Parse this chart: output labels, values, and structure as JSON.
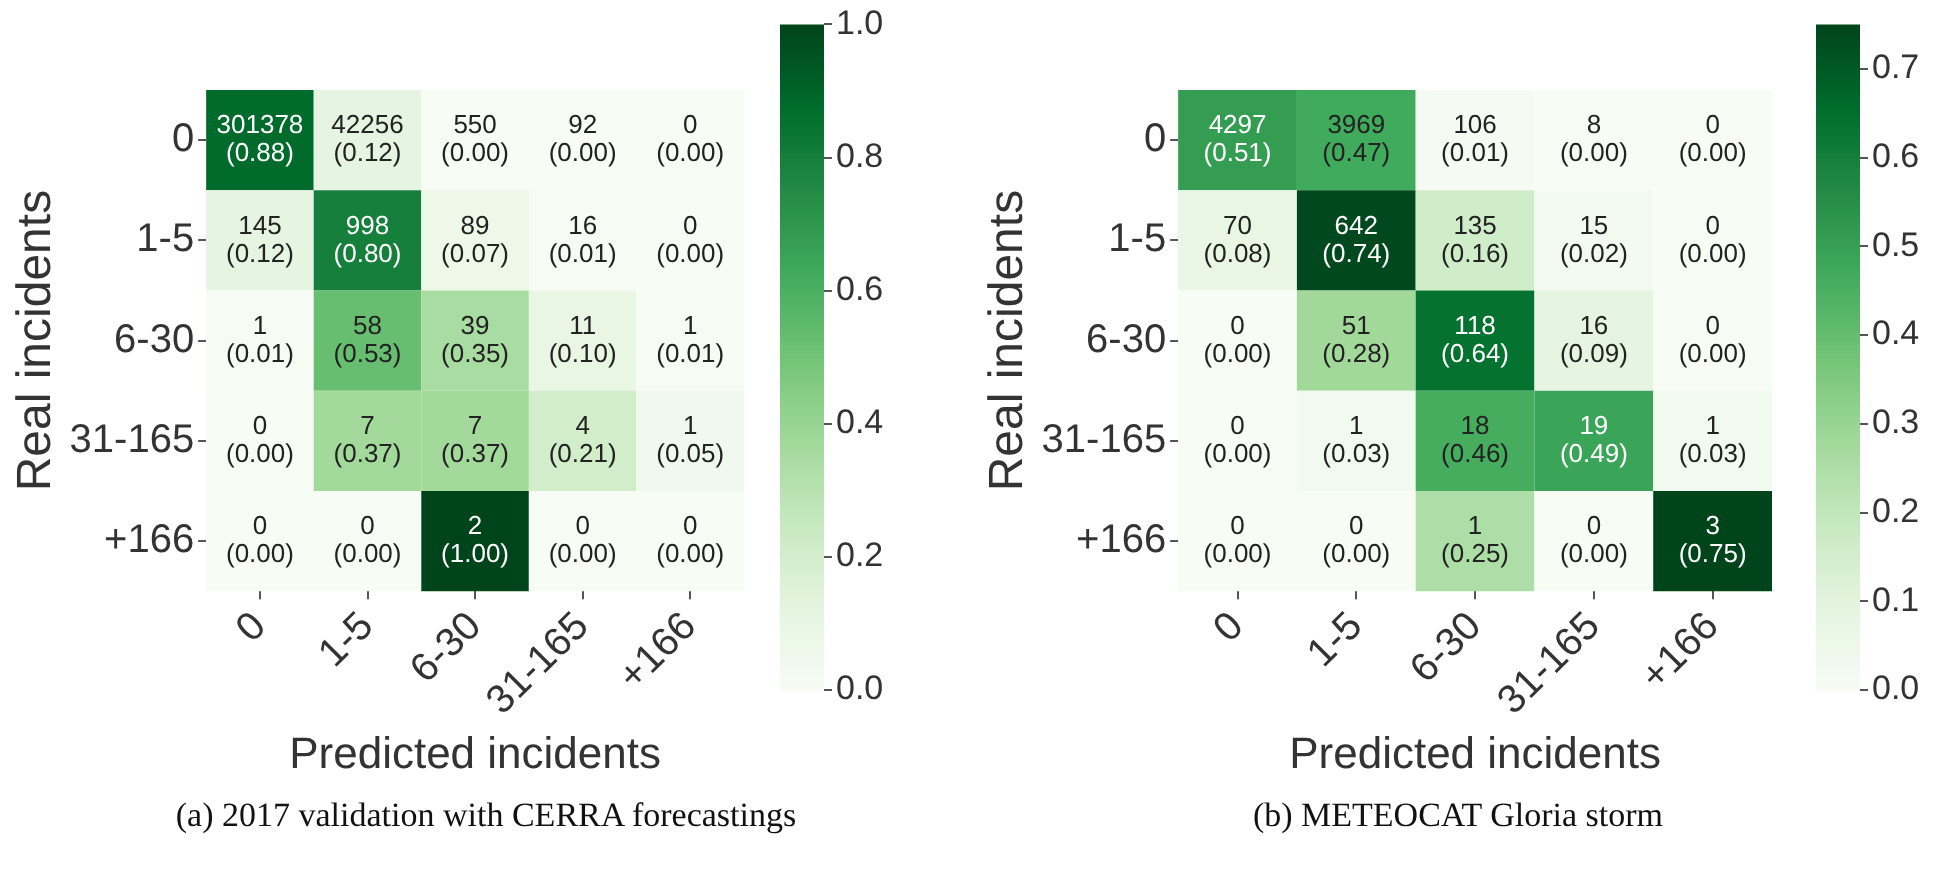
{
  "chart_data": [
    {
      "type": "heatmap",
      "xlabel": "Predicted incidents",
      "ylabel": "Real incidents",
      "categories": [
        "0",
        "1-5",
        "6-30",
        "31-165",
        "+166"
      ],
      "y_categories": [
        "0",
        "1-5",
        "6-30",
        "31-165",
        "+166"
      ],
      "cells": [
        [
          0.88,
          0.12,
          0.0,
          0.0,
          0.0
        ],
        [
          0.12,
          0.8,
          0.07,
          0.01,
          0.0
        ],
        [
          0.01,
          0.53,
          0.35,
          0.1,
          0.01
        ],
        [
          0.0,
          0.37,
          0.37,
          0.21,
          0.05
        ],
        [
          0.0,
          0.0,
          1.0,
          0.0,
          0.0
        ]
      ],
      "cell_labels": [
        [
          "301378\n(0.88)",
          "42256\n(0.12)",
          "550\n(0.00)",
          "92\n(0.00)",
          "0\n(0.00)"
        ],
        [
          "145\n(0.12)",
          "998\n(0.80)",
          "89\n(0.07)",
          "16\n(0.01)",
          "0\n(0.00)"
        ],
        [
          "1\n(0.01)",
          "58\n(0.53)",
          "39\n(0.35)",
          "11\n(0.10)",
          "1\n(0.01)"
        ],
        [
          "0\n(0.00)",
          "7\n(0.37)",
          "7\n(0.37)",
          "4\n(0.21)",
          "1\n(0.05)"
        ],
        [
          "0\n(0.00)",
          "0\n(0.00)",
          "2\n(1.00)",
          "0\n(0.00)",
          "0\n(0.00)"
        ]
      ],
      "clim": [
        0,
        1
      ],
      "cticks": [
        {
          "value": 0,
          "label": "0.0"
        },
        {
          "value": 0.2,
          "label": "0.2"
        },
        {
          "value": 0.4,
          "label": "0.4"
        },
        {
          "value": 0.6,
          "label": "0.6"
        },
        {
          "value": 0.8,
          "label": "0.8"
        },
        {
          "value": 1,
          "label": "1.0"
        }
      ],
      "annotations": [
        "(a) 2017 validation with CERRA forecastings"
      ]
    },
    {
      "type": "heatmap",
      "xlabel": "Predicted incidents",
      "ylabel": "Real incidents",
      "categories": [
        "0",
        "1-5",
        "6-30",
        "31-165",
        "+166"
      ],
      "y_categories": [
        "0",
        "1-5",
        "6-30",
        "31-165",
        "+166"
      ],
      "cells": [
        [
          0.51,
          0.47,
          0.01,
          0.0,
          0.0
        ],
        [
          0.08,
          0.74,
          0.16,
          0.02,
          0.0
        ],
        [
          0.0,
          0.28,
          0.64,
          0.09,
          0.0
        ],
        [
          0.0,
          0.03,
          0.46,
          0.49,
          0.03
        ],
        [
          0.0,
          0.0,
          0.25,
          0.0,
          0.75
        ]
      ],
      "cell_labels": [
        [
          "4297\n(0.51)",
          "3969\n(0.47)",
          "106\n(0.01)",
          "8\n(0.00)",
          "0\n(0.00)"
        ],
        [
          "70\n(0.08)",
          "642\n(0.74)",
          "135\n(0.16)",
          "15\n(0.02)",
          "0\n(0.00)"
        ],
        [
          "0\n(0.00)",
          "51\n(0.28)",
          "118\n(0.64)",
          "16\n(0.09)",
          "0\n(0.00)"
        ],
        [
          "0\n(0.00)",
          "1\n(0.03)",
          "18\n(0.46)",
          "19\n(0.49)",
          "1\n(0.03)"
        ],
        [
          "0\n(0.00)",
          "0\n(0.00)",
          "1\n(0.25)",
          "0\n(0.00)",
          "3\n(0.75)"
        ]
      ],
      "clim": [
        0,
        0.75
      ],
      "cticks": [
        {
          "value": 0,
          "label": "0.0"
        },
        {
          "value": 0.1,
          "label": "0.1"
        },
        {
          "value": 0.2,
          "label": "0.2"
        },
        {
          "value": 0.3,
          "label": "0.3"
        },
        {
          "value": 0.4,
          "label": "0.4"
        },
        {
          "value": 0.5,
          "label": "0.5"
        },
        {
          "value": 0.6,
          "label": "0.6"
        },
        {
          "value": 0.7,
          "label": "0.7"
        }
      ],
      "annotations": [
        "(b) METEOCAT Gloria storm"
      ]
    }
  ]
}
